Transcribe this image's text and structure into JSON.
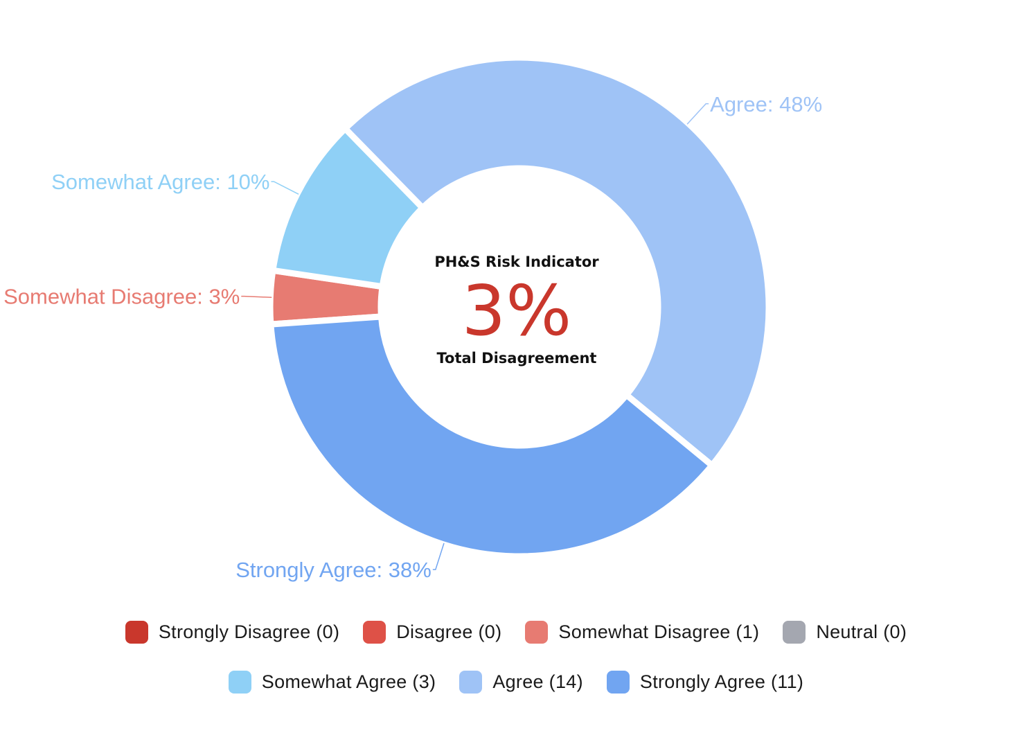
{
  "chart_data": {
    "type": "pie",
    "variant": "doughnut",
    "center": {
      "title": "PH&S Risk Indicator",
      "value": "3%",
      "caption": "Total Disagreement",
      "value_color": "#c9372c"
    },
    "slices": [
      {
        "label": "Strongly Disagree",
        "count": 0,
        "percent": 0,
        "color": "#c9372c",
        "slice_label": ""
      },
      {
        "label": "Disagree",
        "count": 0,
        "percent": 0,
        "color": "#de5147",
        "slice_label": ""
      },
      {
        "label": "Somewhat Disagree",
        "count": 1,
        "percent": 3,
        "color": "#e77b72",
        "slice_label": "Somewhat Disagree: 3%"
      },
      {
        "label": "Neutral",
        "count": 0,
        "percent": 0,
        "color": "#a4a7b0",
        "slice_label": ""
      },
      {
        "label": "Somewhat Agree",
        "count": 3,
        "percent": 10,
        "color": "#8fd0f6",
        "slice_label": "Somewhat Agree: 10%"
      },
      {
        "label": "Agree",
        "count": 14,
        "percent": 48,
        "color": "#9fc3f6",
        "slice_label": "Agree: 48%"
      },
      {
        "label": "Strongly Agree",
        "count": 11,
        "percent": 38,
        "color": "#71a5f1",
        "slice_label": "Strongly Agree: 38%"
      }
    ]
  },
  "legend": {
    "placement": "bottom",
    "row1": [
      {
        "text": "Strongly Disagree (0)",
        "color": "#c9372c"
      },
      {
        "text": "Disagree (0)",
        "color": "#de5147"
      },
      {
        "text": "Somewhat Disagree (1)",
        "color": "#e77b72"
      },
      {
        "text": "Neutral (0)",
        "color": "#a4a7b0"
      }
    ],
    "row2": [
      {
        "text": "Somewhat Agree (3)",
        "color": "#8fd0f6"
      },
      {
        "text": "Agree (14)",
        "color": "#9fc3f6"
      },
      {
        "text": "Strongly Agree (11)",
        "color": "#71a5f1"
      }
    ]
  }
}
